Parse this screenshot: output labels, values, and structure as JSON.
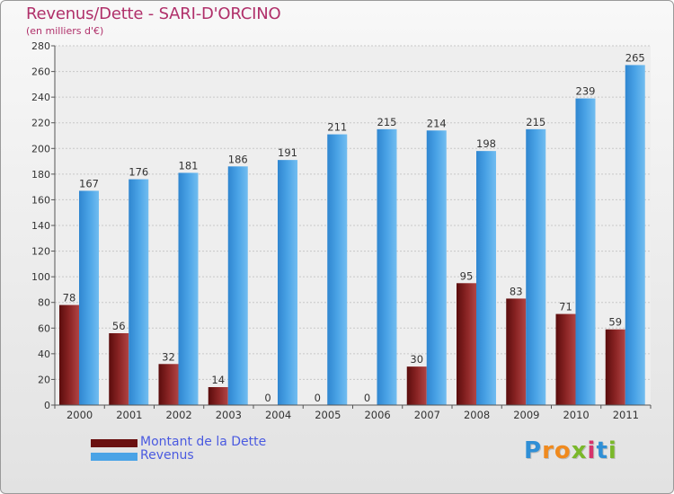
{
  "title": "Revenus/Dette - SARI-D'ORCINO",
  "subtitle": "(en milliers d'€)",
  "legend": {
    "debt_label": "Montant de la Dette",
    "revenue_label": "Revenus"
  },
  "brand": {
    "letters": [
      "P",
      "r",
      "o",
      "x",
      "i",
      "t",
      "i"
    ],
    "colors": [
      "#2f8fd6",
      "#f08a1e",
      "#f08a1e",
      "#7ab82a",
      "#d6336c",
      "#2f8fd6",
      "#7ab82a"
    ]
  },
  "colors": {
    "debt": "#7a1a1a",
    "revenue": "#4aa3e6",
    "title": "#b0306a",
    "legend_text": "#4a5ae0"
  },
  "chart_data": {
    "type": "bar",
    "title": "Revenus/Dette - SARI-D'ORCINO",
    "subtitle": "(en milliers d'€)",
    "categories": [
      "2000",
      "2001",
      "2002",
      "2003",
      "2004",
      "2005",
      "2006",
      "2007",
      "2008",
      "2009",
      "2010",
      "2011"
    ],
    "series": [
      {
        "name": "Montant de la Dette",
        "values": [
          78,
          56,
          32,
          14,
          0,
          0,
          0,
          30,
          95,
          83,
          71,
          59
        ]
      },
      {
        "name": "Revenus",
        "values": [
          167,
          176,
          181,
          186,
          191,
          211,
          215,
          214,
          198,
          215,
          239,
          265
        ]
      }
    ],
    "ylim": [
      0,
      280
    ],
    "yticks": [
      0,
      20,
      40,
      60,
      80,
      100,
      120,
      140,
      160,
      180,
      200,
      220,
      240,
      260,
      280
    ],
    "grid": true,
    "xlabel": "",
    "ylabel": ""
  }
}
